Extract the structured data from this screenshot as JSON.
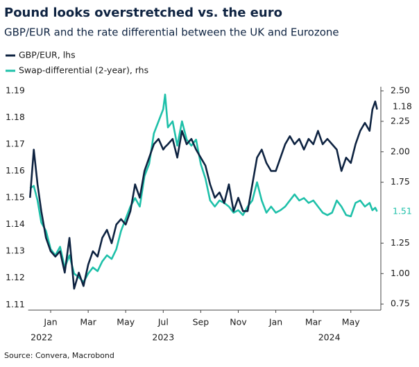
{
  "chart_data": {
    "type": "line",
    "title": "Pound looks overstretched vs. the euro",
    "subtitle": "GBP/EUR and the rate differential between the UK and Eurozone",
    "source": "Source: Convera, Macrobond",
    "x": [
      -0.1,
      0.1,
      0.3,
      0.5,
      0.75,
      1.0,
      1.25,
      1.5,
      1.75,
      2.0,
      2.25,
      2.5,
      2.75,
      3.0,
      3.25,
      3.5,
      3.75,
      4.0,
      4.25,
      4.5,
      4.75,
      5.0,
      5.25,
      5.5,
      5.75,
      6.0,
      6.25,
      6.5,
      6.75,
      7.0,
      7.1,
      7.25,
      7.5,
      7.75,
      8.0,
      8.25,
      8.5,
      8.75,
      9.0,
      9.25,
      9.5,
      9.75,
      10.0,
      10.25,
      10.5,
      10.75,
      11.0,
      11.25,
      11.5,
      11.75,
      12.0,
      12.25,
      12.5,
      12.75,
      13.0,
      13.25,
      13.5,
      13.75,
      14.0,
      14.25,
      14.5,
      14.75,
      15.0,
      15.25,
      15.5,
      15.75,
      16.0,
      16.25,
      16.5,
      16.75,
      17.0,
      17.25,
      17.5,
      17.75,
      18.0,
      18.15,
      18.3,
      18.4
    ],
    "series": [
      {
        "name": "GBP/EUR, lhs",
        "color": "#0e2341",
        "axis": "y",
        "end_label": "1.18",
        "values": [
          1.15,
          1.168,
          1.155,
          1.145,
          1.135,
          1.13,
          1.128,
          1.13,
          1.122,
          1.135,
          1.116,
          1.122,
          1.117,
          1.125,
          1.13,
          1.128,
          1.135,
          1.138,
          1.133,
          1.14,
          1.142,
          1.14,
          1.145,
          1.155,
          1.15,
          1.16,
          1.165,
          1.17,
          1.172,
          1.168,
          1.169,
          1.17,
          1.172,
          1.165,
          1.175,
          1.17,
          1.172,
          1.168,
          1.165,
          1.162,
          1.155,
          1.15,
          1.152,
          1.148,
          1.155,
          1.145,
          1.15,
          1.145,
          1.145,
          1.155,
          1.165,
          1.168,
          1.163,
          1.16,
          1.16,
          1.165,
          1.17,
          1.173,
          1.17,
          1.172,
          1.168,
          1.172,
          1.17,
          1.175,
          1.17,
          1.172,
          1.17,
          1.168,
          1.16,
          1.165,
          1.163,
          1.17,
          1.175,
          1.178,
          1.175,
          1.183,
          1.186,
          1.183
        ]
      },
      {
        "name": "Swap-differential (2-year), rhs",
        "color": "#1ec0a9",
        "axis": "y2",
        "end_label": "1.51",
        "values": [
          1.7,
          1.72,
          1.6,
          1.42,
          1.35,
          1.2,
          1.15,
          1.22,
          1.05,
          1.15,
          1.0,
          0.97,
          0.93,
          1.0,
          1.05,
          1.02,
          1.1,
          1.15,
          1.12,
          1.2,
          1.35,
          1.45,
          1.55,
          1.62,
          1.55,
          1.8,
          1.9,
          2.15,
          2.25,
          2.35,
          2.47,
          2.2,
          2.25,
          2.05,
          2.25,
          2.1,
          2.05,
          2.1,
          1.9,
          1.78,
          1.6,
          1.55,
          1.6,
          1.58,
          1.55,
          1.5,
          1.52,
          1.48,
          1.55,
          1.6,
          1.75,
          1.6,
          1.5,
          1.55,
          1.5,
          1.52,
          1.55,
          1.6,
          1.65,
          1.6,
          1.62,
          1.58,
          1.6,
          1.55,
          1.5,
          1.48,
          1.5,
          1.6,
          1.55,
          1.48,
          1.47,
          1.58,
          1.6,
          1.55,
          1.58,
          1.52,
          1.54,
          1.51
        ]
      }
    ],
    "xlim": [
      -0.2,
      18.6
    ],
    "xticks": [
      {
        "value": 1,
        "label": "Jan"
      },
      {
        "value": 3,
        "label": "Mar"
      },
      {
        "value": 5,
        "label": "May"
      },
      {
        "value": 7,
        "label": "Jul"
      },
      {
        "value": 9,
        "label": "Sep"
      },
      {
        "value": 11,
        "label": "Nov"
      },
      {
        "value": 13,
        "label": "Jan"
      },
      {
        "value": 15,
        "label": "Mar"
      },
      {
        "value": 17,
        "label": "May"
      }
    ],
    "year_labels": [
      {
        "value": 0.52,
        "label": "2022"
      },
      {
        "value": 7.0,
        "label": "2023"
      },
      {
        "value": 15.85,
        "label": "2024"
      }
    ],
    "ylim": [
      1.108,
      1.1915
    ],
    "yticks": [
      1.11,
      1.12,
      1.13,
      1.14,
      1.15,
      1.16,
      1.17,
      1.18,
      1.19
    ],
    "y2lim": [
      0.7,
      2.534
    ],
    "y2ticks": [
      {
        "value": 0.75,
        "label": "0.75"
      },
      {
        "value": 1.0,
        "label": "1.00"
      },
      {
        "value": 1.25,
        "label": "1.25"
      },
      {
        "value": 1.75,
        "label": "1.75"
      },
      {
        "value": 2.0,
        "label": "2.00"
      },
      {
        "value": 2.25,
        "label": "2.25"
      },
      {
        "value": 2.5,
        "label": "2.50"
      }
    ],
    "grid": false
  }
}
